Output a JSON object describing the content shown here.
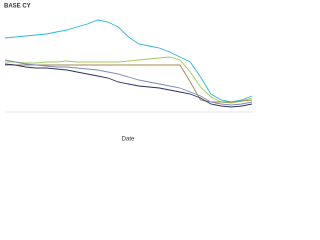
{
  "chart_data": {
    "type": "line",
    "title": "BASE CY",
    "x_label": "Date",
    "x": [
      0,
      1,
      2,
      3,
      4,
      5,
      6,
      7,
      8,
      9,
      10,
      11,
      12,
      13,
      14,
      15,
      16,
      17,
      18,
      19,
      20,
      21,
      22,
      23,
      24
    ],
    "xlim": [
      0,
      24
    ],
    "ylim": [
      0,
      100
    ],
    "series": [
      {
        "color": "#2bb7d8",
        "values": [
          74,
          75,
          76,
          77,
          78,
          80,
          82,
          85,
          88,
          92,
          90,
          85,
          75,
          68,
          66,
          64,
          60,
          55,
          50,
          35,
          18,
          12,
          10,
          12,
          16
        ]
      },
      {
        "color": "#9ccc5a",
        "values": [
          50,
          50,
          49,
          49,
          50,
          50,
          51,
          50,
          50,
          50,
          50,
          50,
          51,
          52,
          53,
          54,
          55,
          52,
          40,
          25,
          15,
          10,
          9,
          11,
          14
        ]
      },
      {
        "color": "#a08a4a",
        "values": [
          47,
          47,
          47,
          47,
          47,
          47,
          47,
          47,
          47,
          47,
          47,
          47,
          47,
          47,
          47,
          47,
          47,
          47,
          30,
          12,
          10,
          10,
          10,
          11,
          12
        ]
      },
      {
        "color": "#8088b0",
        "values": [
          52,
          50,
          48,
          47,
          46,
          45,
          45,
          44,
          43,
          42,
          40,
          38,
          35,
          32,
          30,
          28,
          26,
          24,
          20,
          16,
          10,
          8,
          7,
          8,
          10
        ]
      },
      {
        "color": "#2a2f60",
        "values": [
          48,
          47,
          45,
          44,
          44,
          43,
          42,
          40,
          38,
          36,
          34,
          30,
          28,
          26,
          25,
          24,
          22,
          20,
          18,
          14,
          8,
          6,
          5,
          6,
          8
        ]
      }
    ]
  }
}
